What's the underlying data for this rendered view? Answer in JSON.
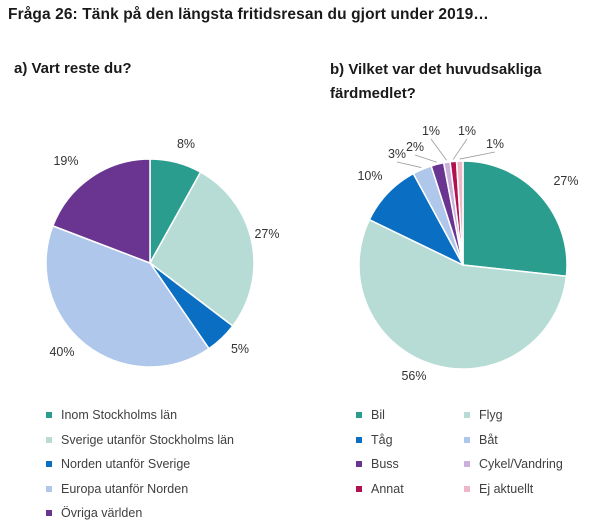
{
  "title": "Fråga 26: Tänk på den längsta fritidsresan du gjort under 2019…",
  "chart_data": [
    {
      "type": "pie",
      "title": "a) Vart reste du?",
      "categories": [
        "Inom Stockholms län",
        "Sverige utanför Stockholms län",
        "Norden utanför Sverige",
        "Europa utanför Norden",
        "Övriga världen"
      ],
      "values": [
        8,
        27,
        5,
        40,
        19
      ],
      "labels": [
        "8%",
        "27%",
        "5%",
        "40%",
        "19%"
      ],
      "colors": [
        "#2a9d8f",
        "#b7dcd6",
        "#0a6fc2",
        "#aec7ea",
        "#6a3590"
      ],
      "legend": "bottom"
    },
    {
      "type": "pie",
      "title": "b) Vilket var det huvudsakliga färdmedlet?",
      "categories": [
        "Bil",
        "Flyg",
        "Tåg",
        "Båt",
        "Buss",
        "Cykel/Vandring",
        "Annat",
        "Ej aktuellt"
      ],
      "values": [
        27,
        56,
        10,
        3,
        2,
        1,
        1,
        1
      ],
      "labels": [
        "27%",
        "56%",
        "10%",
        "3%",
        "2%",
        "1%",
        "1%",
        "1%"
      ],
      "colors": [
        "#2a9d8f",
        "#b7dcd6",
        "#0a6fc2",
        "#aec7ea",
        "#6a3590",
        "#c9b0dd",
        "#b0124f",
        "#eeb7c6"
      ],
      "legend": "bottom"
    }
  ]
}
